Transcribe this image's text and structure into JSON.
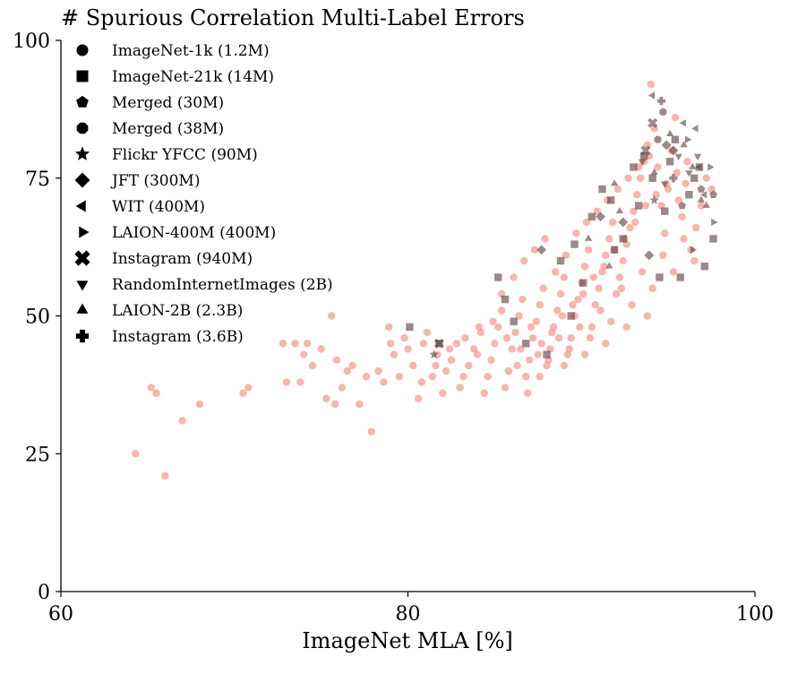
{
  "chart_data": {
    "type": "scatter",
    "title": "# Spurious Correlation Multi-Label Errors",
    "xlabel": "ImageNet MLA [%]",
    "ylabel": "",
    "xlim": [
      60,
      100
    ],
    "ylim": [
      0,
      100
    ],
    "xticks": [
      "60",
      "80",
      "100"
    ],
    "yticks": [
      "0",
      "25",
      "50",
      "75",
      "100"
    ],
    "grid": false,
    "legend_position": "top-left",
    "colors": {
      "imagenet1k": "#f4847a",
      "other": "#5a3a3a"
    },
    "legend": [
      {
        "label": "ImageNet-1k (1.2M)",
        "marker": "circle"
      },
      {
        "label": "ImageNet-21k (14M)",
        "marker": "square"
      },
      {
        "label": "Merged (30M)",
        "marker": "pentagon"
      },
      {
        "label": "Merged (38M)",
        "marker": "octagon"
      },
      {
        "label": "Flickr YFCC (90M)",
        "marker": "star"
      },
      {
        "label": "JFT (300M)",
        "marker": "diamond"
      },
      {
        "label": "WIT (400M)",
        "marker": "triangle-left"
      },
      {
        "label": "LAION-400M (400M)",
        "marker": "triangle-right"
      },
      {
        "label": "Instagram (940M)",
        "marker": "x"
      },
      {
        "label": "RandomInternetImages (2B)",
        "marker": "triangle-down"
      },
      {
        "label": "LAION-2B (2.3B)",
        "marker": "triangle-up"
      },
      {
        "label": "Instagram (3.6B)",
        "marker": "plus"
      }
    ],
    "series": [
      {
        "marker": "circle",
        "points": [
          [
            64.3,
            25
          ],
          [
            66.0,
            21
          ],
          [
            65.2,
            37
          ],
          [
            65.5,
            36
          ],
          [
            67.0,
            31
          ],
          [
            68.0,
            34
          ],
          [
            70.5,
            36
          ],
          [
            70.8,
            37
          ],
          [
            72.8,
            45
          ],
          [
            73.0,
            38
          ],
          [
            73.5,
            45
          ],
          [
            73.8,
            38
          ],
          [
            74.0,
            43
          ],
          [
            74.2,
            45
          ],
          [
            74.5,
            41
          ],
          [
            75.0,
            44
          ],
          [
            75.3,
            35
          ],
          [
            75.6,
            50
          ],
          [
            75.8,
            34
          ],
          [
            75.9,
            42
          ],
          [
            76.2,
            37
          ],
          [
            76.5,
            40
          ],
          [
            76.8,
            41
          ],
          [
            77.2,
            34
          ],
          [
            77.6,
            39
          ],
          [
            77.9,
            29
          ],
          [
            78.3,
            40
          ],
          [
            78.6,
            38
          ],
          [
            78.9,
            48
          ],
          [
            79.0,
            45
          ],
          [
            79.2,
            43
          ],
          [
            79.5,
            39
          ],
          [
            79.8,
            46
          ],
          [
            80.0,
            44
          ],
          [
            80.3,
            41
          ],
          [
            80.6,
            35
          ],
          [
            80.9,
            45
          ],
          [
            81.1,
            47
          ],
          [
            81.4,
            39
          ],
          [
            81.7,
            43
          ],
          [
            82.0,
            36
          ],
          [
            82.2,
            40
          ],
          [
            82.5,
            42
          ],
          [
            82.8,
            45
          ],
          [
            83.0,
            37
          ],
          [
            83.2,
            39
          ],
          [
            83.5,
            41
          ],
          [
            83.8,
            44
          ],
          [
            84.0,
            43
          ],
          [
            84.2,
            47
          ],
          [
            84.4,
            36
          ],
          [
            84.6,
            39
          ],
          [
            84.8,
            42
          ],
          [
            85.0,
            45
          ],
          [
            85.2,
            48
          ],
          [
            85.4,
            51
          ],
          [
            85.6,
            37
          ],
          [
            85.8,
            40
          ],
          [
            86.0,
            44
          ],
          [
            86.2,
            47
          ],
          [
            86.4,
            50
          ],
          [
            86.6,
            53
          ],
          [
            86.8,
            39
          ],
          [
            87.0,
            42
          ],
          [
            87.2,
            46
          ],
          [
            87.4,
            49
          ],
          [
            87.6,
            52
          ],
          [
            87.8,
            55
          ],
          [
            88.0,
            41
          ],
          [
            88.2,
            44
          ],
          [
            88.4,
            48
          ],
          [
            88.6,
            51
          ],
          [
            88.8,
            54
          ],
          [
            89.0,
            57
          ],
          [
            89.2,
            43
          ],
          [
            89.4,
            46
          ],
          [
            89.6,
            50
          ],
          [
            89.8,
            53
          ],
          [
            90.0,
            56
          ],
          [
            90.2,
            59
          ],
          [
            90.4,
            62
          ],
          [
            90.6,
            48
          ],
          [
            90.8,
            52
          ],
          [
            91.0,
            55
          ],
          [
            91.2,
            58
          ],
          [
            91.4,
            61
          ],
          [
            91.6,
            64
          ],
          [
            91.8,
            67
          ],
          [
            92.0,
            54
          ],
          [
            92.2,
            57
          ],
          [
            92.4,
            60
          ],
          [
            92.6,
            63
          ],
          [
            92.8,
            66
          ],
          [
            93.0,
            69
          ],
          [
            93.2,
            72
          ],
          [
            93.4,
            75
          ],
          [
            93.6,
            78
          ],
          [
            93.8,
            81
          ],
          [
            94.0,
            92
          ],
          [
            94.2,
            84
          ],
          [
            94.4,
            77
          ],
          [
            94.6,
            70
          ],
          [
            94.8,
            65
          ],
          [
            95.0,
            73
          ],
          [
            95.2,
            80
          ],
          [
            95.4,
            86
          ],
          [
            95.6,
            71
          ],
          [
            95.8,
            68
          ],
          [
            96.0,
            74
          ],
          [
            96.3,
            62
          ],
          [
            96.6,
            66
          ],
          [
            96.9,
            70
          ],
          [
            97.2,
            75
          ],
          [
            97.5,
            73
          ],
          [
            85.4,
            54
          ],
          [
            86.1,
            57
          ],
          [
            86.7,
            60
          ],
          [
            87.3,
            62
          ],
          [
            87.9,
            64
          ],
          [
            88.5,
            58
          ],
          [
            89.1,
            61
          ],
          [
            89.7,
            65
          ],
          [
            90.3,
            67
          ],
          [
            90.9,
            69
          ],
          [
            91.5,
            71
          ],
          [
            92.1,
            73
          ],
          [
            92.7,
            75
          ],
          [
            93.3,
            77
          ],
          [
            93.9,
            79
          ],
          [
            84.9,
            49
          ],
          [
            85.7,
            46
          ],
          [
            86.5,
            44
          ],
          [
            87.1,
            48
          ],
          [
            87.7,
            45
          ],
          [
            88.3,
            47
          ],
          [
            88.9,
            50
          ],
          [
            89.5,
            52
          ],
          [
            90.1,
            54
          ],
          [
            90.7,
            57
          ],
          [
            91.3,
            59
          ],
          [
            91.9,
            62
          ],
          [
            92.5,
            64
          ],
          [
            93.1,
            67
          ],
          [
            93.7,
            70
          ],
          [
            94.3,
            72
          ],
          [
            94.9,
            74
          ],
          [
            95.5,
            76
          ],
          [
            96.1,
            78
          ],
          [
            80.8,
            38
          ],
          [
            81.6,
            41
          ],
          [
            82.4,
            44
          ],
          [
            83.3,
            46
          ],
          [
            84.1,
            48
          ],
          [
            86.3,
            41
          ],
          [
            87.5,
            43
          ],
          [
            88.7,
            46
          ],
          [
            89.9,
            48
          ],
          [
            91.1,
            51
          ],
          [
            92.3,
            55
          ],
          [
            93.5,
            58
          ],
          [
            94.7,
            61
          ],
          [
            95.9,
            64
          ],
          [
            86.9,
            36
          ],
          [
            87.6,
            39
          ],
          [
            88.1,
            42
          ],
          [
            89.3,
            44
          ],
          [
            90.5,
            46
          ],
          [
            91.7,
            49
          ],
          [
            92.9,
            52
          ],
          [
            94.1,
            55
          ],
          [
            95.3,
            58
          ],
          [
            96.5,
            60
          ],
          [
            89.0,
            41
          ],
          [
            90.2,
            43
          ],
          [
            91.4,
            45
          ],
          [
            92.6,
            48
          ],
          [
            93.8,
            50
          ]
        ]
      },
      {
        "marker": "square",
        "points": [
          [
            80.1,
            48
          ],
          [
            81.8,
            45
          ],
          [
            85.2,
            57
          ],
          [
            85.6,
            53
          ],
          [
            86.1,
            49
          ],
          [
            86.8,
            45
          ],
          [
            88.0,
            43
          ],
          [
            89.4,
            50
          ],
          [
            90.1,
            56
          ],
          [
            90.6,
            68
          ],
          [
            91.2,
            73
          ],
          [
            91.7,
            71
          ],
          [
            92.4,
            64
          ],
          [
            93.0,
            77
          ],
          [
            93.6,
            79
          ],
          [
            94.1,
            75
          ],
          [
            94.8,
            69
          ],
          [
            95.4,
            82
          ],
          [
            95.7,
            57
          ],
          [
            96.2,
            72
          ],
          [
            96.8,
            77
          ],
          [
            97.1,
            59
          ],
          [
            97.6,
            64
          ],
          [
            93.3,
            70
          ],
          [
            94.5,
            57
          ],
          [
            89.6,
            63
          ],
          [
            88.8,
            60
          ],
          [
            91.9,
            62
          ],
          [
            95.1,
            78
          ],
          [
            96.5,
            75
          ]
        ]
      },
      {
        "marker": "pentagon",
        "points": [
          [
            97.6,
            72
          ],
          [
            96.9,
            73
          ],
          [
            95.8,
            70
          ]
        ]
      },
      {
        "marker": "octagon",
        "points": [
          [
            94.7,
            87
          ],
          [
            94.4,
            82
          ]
        ]
      },
      {
        "marker": "star",
        "points": [
          [
            81.5,
            43
          ],
          [
            94.2,
            71
          ]
        ]
      },
      {
        "marker": "diamond",
        "points": [
          [
            87.7,
            62
          ],
          [
            91.1,
            68
          ],
          [
            92.4,
            67
          ],
          [
            93.9,
            61
          ],
          [
            94.9,
            81
          ],
          [
            95.3,
            80
          ]
        ]
      },
      {
        "marker": "triangle-left",
        "points": [
          [
            94.1,
            90
          ],
          [
            95.9,
            85
          ],
          [
            96.6,
            84
          ],
          [
            96.8,
            77
          ],
          [
            97.1,
            72
          ]
        ]
      },
      {
        "marker": "triangle-right",
        "points": [
          [
            96.4,
            62
          ],
          [
            97.6,
            67
          ],
          [
            97.4,
            77
          ],
          [
            96.1,
            82
          ]
        ]
      },
      {
        "marker": "x",
        "points": [
          [
            81.8,
            45
          ],
          [
            94.1,
            85
          ],
          [
            93.7,
            80
          ]
        ]
      },
      {
        "marker": "triangle-down",
        "points": [
          [
            93.5,
            78
          ],
          [
            94.8,
            74
          ],
          [
            95.6,
            79
          ],
          [
            96.7,
            79
          ],
          [
            96.2,
            76
          ]
        ]
      },
      {
        "marker": "triangle-up",
        "points": [
          [
            90.4,
            64
          ],
          [
            91.6,
            59
          ],
          [
            92.2,
            69
          ],
          [
            94.2,
            76
          ],
          [
            95.1,
            83
          ],
          [
            95.9,
            81
          ],
          [
            96.4,
            77
          ],
          [
            96.9,
            71
          ],
          [
            97.2,
            70
          ],
          [
            91.9,
            74
          ]
        ]
      },
      {
        "marker": "plus",
        "points": [
          [
            94.6,
            89
          ],
          [
            95.3,
            75
          ]
        ]
      }
    ]
  }
}
